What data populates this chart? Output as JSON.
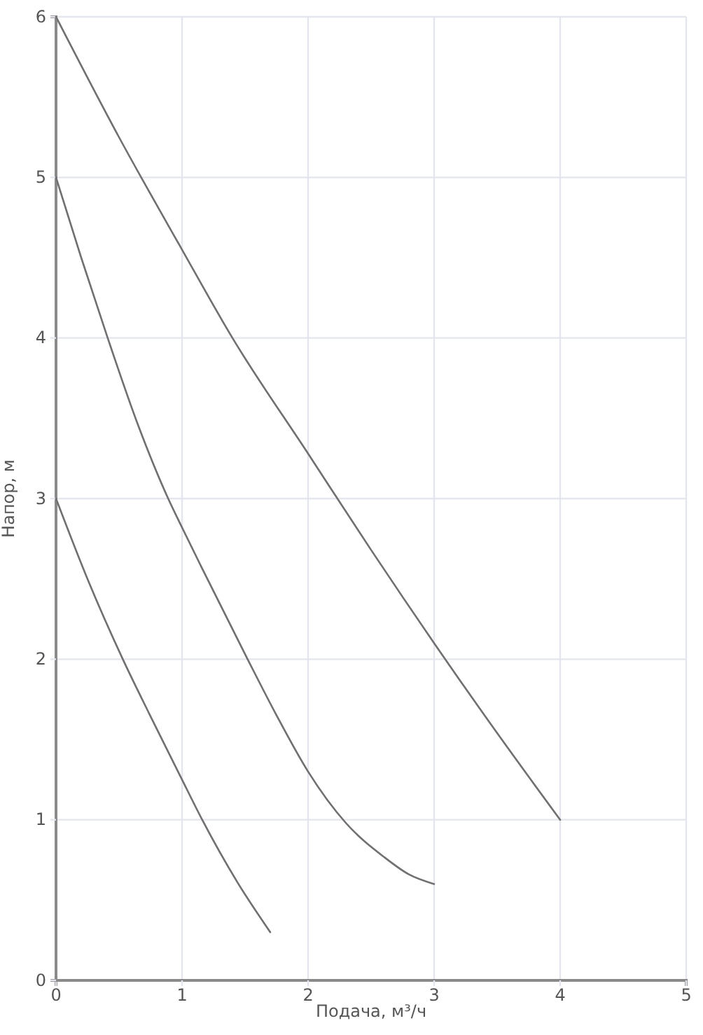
{
  "chart_data": {
    "type": "line",
    "xlabel": "Подача, м³/ч",
    "ylabel": "Напор, м",
    "xlim": [
      0,
      5
    ],
    "ylim": [
      0,
      6
    ],
    "xticks": [
      0,
      1,
      2,
      3,
      4,
      5
    ],
    "yticks": [
      0,
      1,
      2,
      3,
      4,
      5,
      6
    ],
    "grid": true,
    "series": [
      {
        "color": "#707070",
        "x": [
          0,
          0.5,
          1,
          1.4,
          2,
          2.5,
          3,
          3.5,
          4
        ],
        "values": [
          6,
          5.25,
          4.55,
          4,
          3.28,
          2.68,
          2.1,
          1.54,
          1
        ]
      },
      {
        "color": "#707070",
        "x": [
          0,
          0.2,
          0.41,
          0.65,
          0.89,
          1,
          1.15,
          1.52,
          1.75,
          2,
          2.3,
          2.6,
          2.8,
          3
        ],
        "values": [
          5,
          4.5,
          4,
          3.46,
          3,
          2.82,
          2.58,
          2,
          1.65,
          1.3,
          0.98,
          0.77,
          0.66,
          0.6
        ]
      },
      {
        "color": "#707070",
        "x": [
          0,
          0.26,
          0.53,
          0.74,
          1,
          1.16,
          1.44,
          1.7
        ],
        "values": [
          3,
          2.48,
          2,
          1.66,
          1.25,
          1,
          0.61,
          0.3
        ]
      }
    ]
  }
}
